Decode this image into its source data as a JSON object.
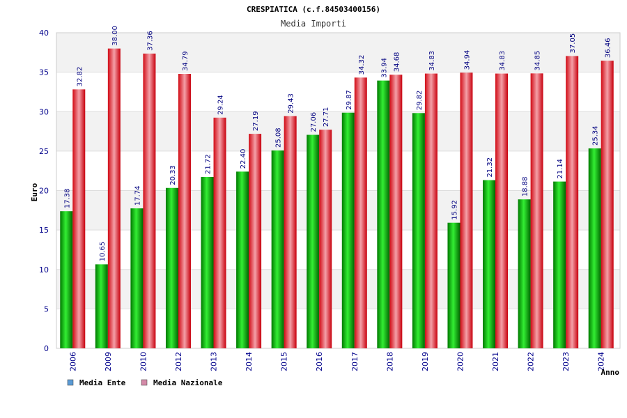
{
  "chart_data": {
    "type": "bar",
    "title": "CRESPIATICA (c.f.84503400156)",
    "subtitle": "Media Importi",
    "ylabel": "Euro",
    "xlabel": "Anno",
    "ylim": [
      0,
      40
    ],
    "yticks": [
      0,
      5,
      10,
      15,
      20,
      25,
      30,
      35,
      40
    ],
    "grid": "horizontal bands",
    "legend_position": "bottom-left",
    "categories": [
      "2006",
      "2009",
      "2010",
      "2012",
      "2013",
      "2014",
      "2015",
      "2016",
      "2017",
      "2018",
      "2019",
      "2020",
      "2021",
      "2022",
      "2023",
      "2024"
    ],
    "series": [
      {
        "name": "Media Ente",
        "color": "#00aa00",
        "legend_color": "#5b9bd5",
        "values": [
          17.38,
          10.65,
          17.74,
          20.33,
          21.72,
          22.4,
          25.08,
          27.06,
          29.87,
          33.94,
          29.82,
          15.92,
          21.32,
          18.88,
          21.14,
          25.34
        ],
        "labels": [
          "17.38",
          "10.65",
          "17.74",
          "20.33",
          "21.72",
          "22.40",
          "25.08",
          "27.06",
          "29.87",
          "33.94",
          "29.82",
          "15.92",
          "21.32",
          "18.88",
          "21.14",
          "25.34"
        ]
      },
      {
        "name": "Media Nazionale",
        "color": "#e8202a",
        "legend_color": "#d48aa8",
        "values": [
          32.82,
          38.0,
          37.36,
          34.79,
          29.24,
          27.19,
          29.43,
          27.71,
          34.32,
          34.68,
          34.83,
          34.94,
          34.83,
          34.85,
          37.05,
          36.46
        ],
        "labels": [
          "32.82",
          "38.00",
          "37.36",
          "34.79",
          "29.24",
          "27.19",
          "29.43",
          "27.71",
          "34.32",
          "34.68",
          "34.83",
          "34.94",
          "34.83",
          "34.85",
          "37.05",
          "36.46"
        ]
      }
    ]
  }
}
